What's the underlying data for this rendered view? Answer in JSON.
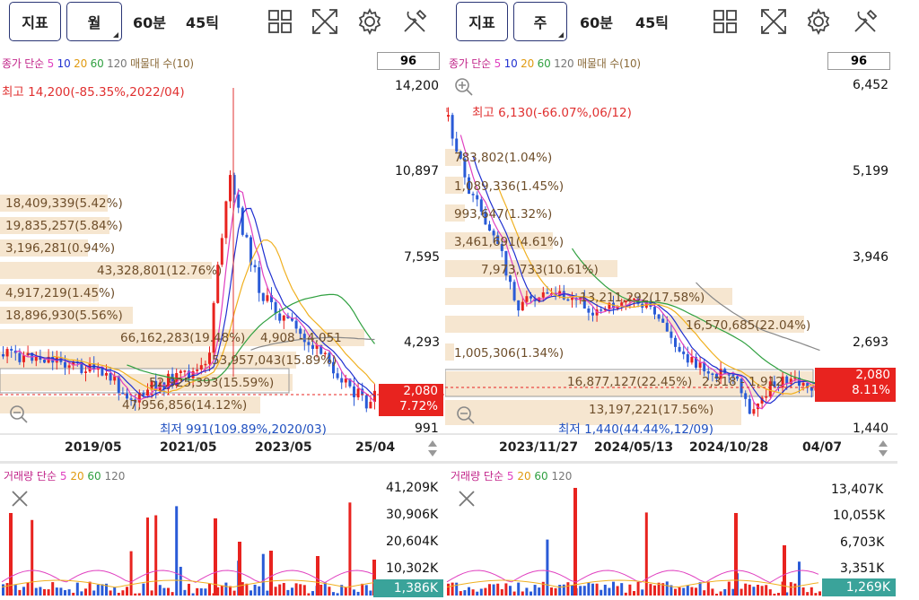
{
  "left": {
    "toolbar": {
      "indicator": "지표",
      "period": "월",
      "interval": "60분",
      "ticks": "45틱"
    },
    "icons": [
      "layout-icon",
      "expand-icon",
      "settings-icon",
      "tools-icon"
    ],
    "indicator_legend": {
      "prefix": "종가 단순",
      "ma": [
        "5",
        "10",
        "20",
        "60",
        "120"
      ],
      "suffix": "매물대 수(10)"
    },
    "count_box": "96",
    "y_axis": [
      "14,200",
      "10,897",
      "7,595",
      "4,293",
      "991"
    ],
    "x_axis": [
      "2019/05",
      "2021/05",
      "2023/05",
      "25/04"
    ],
    "high_label": "최고 14,200(-85.35%,2022/04)",
    "low_label": "최저 991(109.89%,2020/03)",
    "price": {
      "value": "2,080",
      "change": "7.72%"
    },
    "volume_profile": [
      "18,409,339(5.42%)",
      "19,835,257(5.84%)",
      "3,196,281(0.94%)",
      "43,328,801(12.76%)",
      "4,917,219(1.45%)",
      "18,896,930(5.56%)",
      "66,162,283(19.48%)",
      "4,908 - 4,051",
      "53,957,043(15.89%)",
      "52,925,393(15.59%)",
      "47,956,856(14.12%)"
    ],
    "volume_legend": {
      "prefix": "거래량 단순",
      "ma": [
        "5",
        "20",
        "60",
        "120"
      ]
    },
    "volume_axis": [
      "41,209K",
      "30,906K",
      "20,604K",
      "10,302K"
    ],
    "volume_current": "1,386K",
    "colors": {
      "up": "#e8231f",
      "down": "#2a5bd7",
      "ma5": "#e040c0",
      "ma10": "#2030d0",
      "ma20": "#f0b020",
      "ma60": "#30a040",
      "ma120": "#888888",
      "profile": "#f6e6d0"
    }
  },
  "right": {
    "toolbar": {
      "indicator": "지표",
      "period": "주",
      "interval": "60분",
      "ticks": "45틱"
    },
    "icons": [
      "layout-icon",
      "expand-icon",
      "settings-icon",
      "tools-icon"
    ],
    "indicator_legend": {
      "prefix": "종가 단순",
      "ma": [
        "5",
        "10",
        "20",
        "60",
        "120"
      ],
      "suffix": "매물대 수(10)"
    },
    "count_box": "96",
    "y_axis": [
      "6,452",
      "5,199",
      "3,946",
      "2,693",
      "1,440"
    ],
    "x_axis": [
      "2023/11/27",
      "2024/05/13",
      "2024/10/28",
      "04/07"
    ],
    "high_label": "최고 6,130(-66.07%,06/12)",
    "low_label": "최저 1,440(44.44%,12/09)",
    "price": {
      "value": "2,080",
      "change": "8.11%"
    },
    "volume_profile": [
      "783,802(1.04%)",
      "1,089,336(1.45%)",
      "993,647(1.32%)",
      "3,461,691(4.61%)",
      "7,973,733(10.61%)",
      "13,211,292(17.58%)",
      "16,570,685(22.04%)",
      "1,005,306(1.34%)",
      "16,877,127(22.45%)",
      "2,318 - 1,912",
      "13,197,221(17.56%)"
    ],
    "volume_legend": {
      "prefix": "거래량 단순",
      "ma": [
        "5",
        "20",
        "60",
        "120"
      ]
    },
    "volume_axis": [
      "13,407K",
      "10,055K",
      "6,703K",
      "3,351K"
    ],
    "volume_current": "1,269K"
  }
}
